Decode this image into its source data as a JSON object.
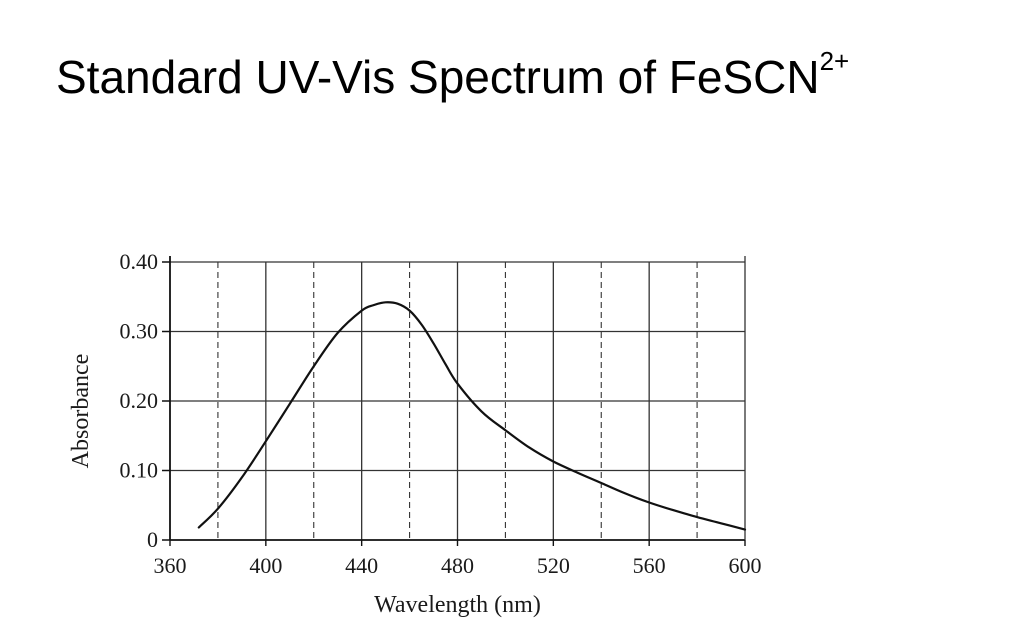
{
  "slide": {
    "title": "Standard UV-Vis Spectrum of FeSCN",
    "title_superscript": "2+"
  },
  "chart_data": {
    "type": "line",
    "xlabel": "Wavelength (nm)",
    "ylabel": "Absorbance",
    "xlim": [
      360,
      600
    ],
    "ylim": [
      0,
      0.4
    ],
    "x_ticks": [
      360,
      400,
      440,
      480,
      520,
      560,
      600
    ],
    "x_tick_labels": [
      "360",
      "400",
      "440",
      "480",
      "520",
      "560",
      "600"
    ],
    "y_ticks": [
      0,
      0.1,
      0.2,
      0.3,
      0.4
    ],
    "y_tick_labels": [
      "0",
      "0.10",
      "0.20",
      "0.30",
      "0.40"
    ],
    "grid": {
      "major_solid": true,
      "minor_dashed": true
    },
    "line_color": "#111111",
    "series": [
      {
        "x": [
          372,
          380,
          390,
          400,
          410,
          420,
          430,
          440,
          445,
          450,
          455,
          460,
          465,
          470,
          475,
          480,
          490,
          500,
          510,
          520,
          530,
          540,
          550,
          560,
          570,
          580,
          590,
          600
        ],
        "y": [
          0.018,
          0.045,
          0.09,
          0.142,
          0.196,
          0.25,
          0.298,
          0.33,
          0.338,
          0.342,
          0.34,
          0.33,
          0.31,
          0.283,
          0.253,
          0.225,
          0.185,
          0.158,
          0.133,
          0.113,
          0.097,
          0.082,
          0.067,
          0.054,
          0.043,
          0.033,
          0.024,
          0.015
        ]
      }
    ]
  }
}
